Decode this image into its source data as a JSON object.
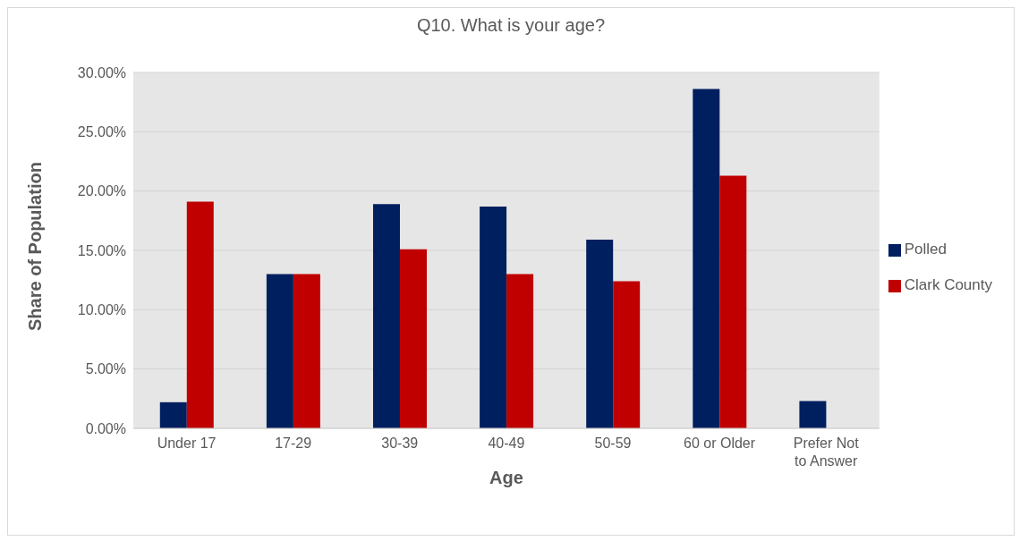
{
  "chart_data": {
    "type": "bar",
    "title": "Q10. What is your age?",
    "xlabel": "Age",
    "ylabel": "Share of Population",
    "categories": [
      "Under 17",
      "17-29",
      "30-39",
      "40-49",
      "50-59",
      "60 or Older",
      "Prefer Not to Answer"
    ],
    "series": [
      {
        "name": "Polled",
        "color": "#001f5f",
        "values": [
          2.2,
          13.0,
          18.9,
          18.7,
          15.9,
          28.6,
          2.3
        ]
      },
      {
        "name": "Clark County",
        "color": "#c00000",
        "values": [
          19.1,
          13.0,
          15.1,
          13.0,
          12.4,
          21.3,
          null
        ]
      }
    ],
    "ylim": [
      0,
      30
    ],
    "yticks": [
      {
        "value": 0,
        "label": "0.00%"
      },
      {
        "value": 5,
        "label": "5.00%"
      },
      {
        "value": 10,
        "label": "10.00%"
      },
      {
        "value": 15,
        "label": "15.00%"
      },
      {
        "value": 20,
        "label": "20.00%"
      },
      {
        "value": 25,
        "label": "25.00%"
      },
      {
        "value": 30,
        "label": "30.00%"
      }
    ],
    "grid": "y",
    "legend": "right"
  }
}
